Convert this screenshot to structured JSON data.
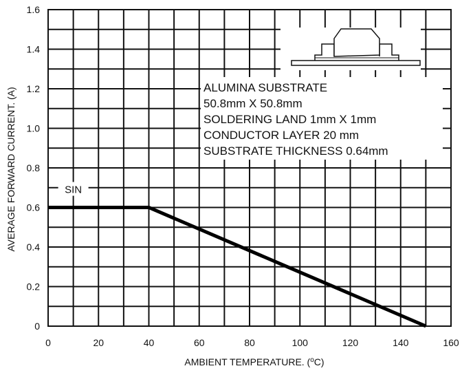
{
  "chart_data": {
    "type": "line",
    "xlabel": "AMBIENT  TEMPERATURE. (",
    "xlabel_unit_superscript": "o",
    "xlabel_unit_suffix": "C)",
    "ylabel": "AVERAGE FORWARD CURRENT. (A)",
    "xlim": [
      0,
      160
    ],
    "ylim": [
      0,
      1.6
    ],
    "x_ticks": [
      "0",
      "20",
      "40",
      "60",
      "80",
      "100",
      "120",
      "140",
      "160"
    ],
    "y_ticks": [
      "0",
      "0.2",
      "0.4",
      "0.6",
      "0.8",
      "1.0",
      "1.2",
      "1.4",
      "1.6"
    ],
    "x_minor_grid_step": 10,
    "y_minor_grid_step": 0.1,
    "grid": true,
    "series": [
      {
        "name": "SIN",
        "points": [
          [
            0,
            0.6
          ],
          [
            40,
            0.6
          ],
          [
            150,
            0.0
          ]
        ]
      }
    ],
    "annotation_lines": [
      "ALUMINA SUBSTRATE",
      "50.8mm X 50.8mm",
      "SOLDERING LAND 1mm X 1mm",
      "CONDUCTOR LAYER 20 mm",
      "SUBSTRATE THICKNESS 0.64mm"
    ],
    "inset": "package-on-substrate-drawing",
    "colors": {
      "grid": "#111111",
      "series": "#000000",
      "background": "#ffffff"
    }
  }
}
